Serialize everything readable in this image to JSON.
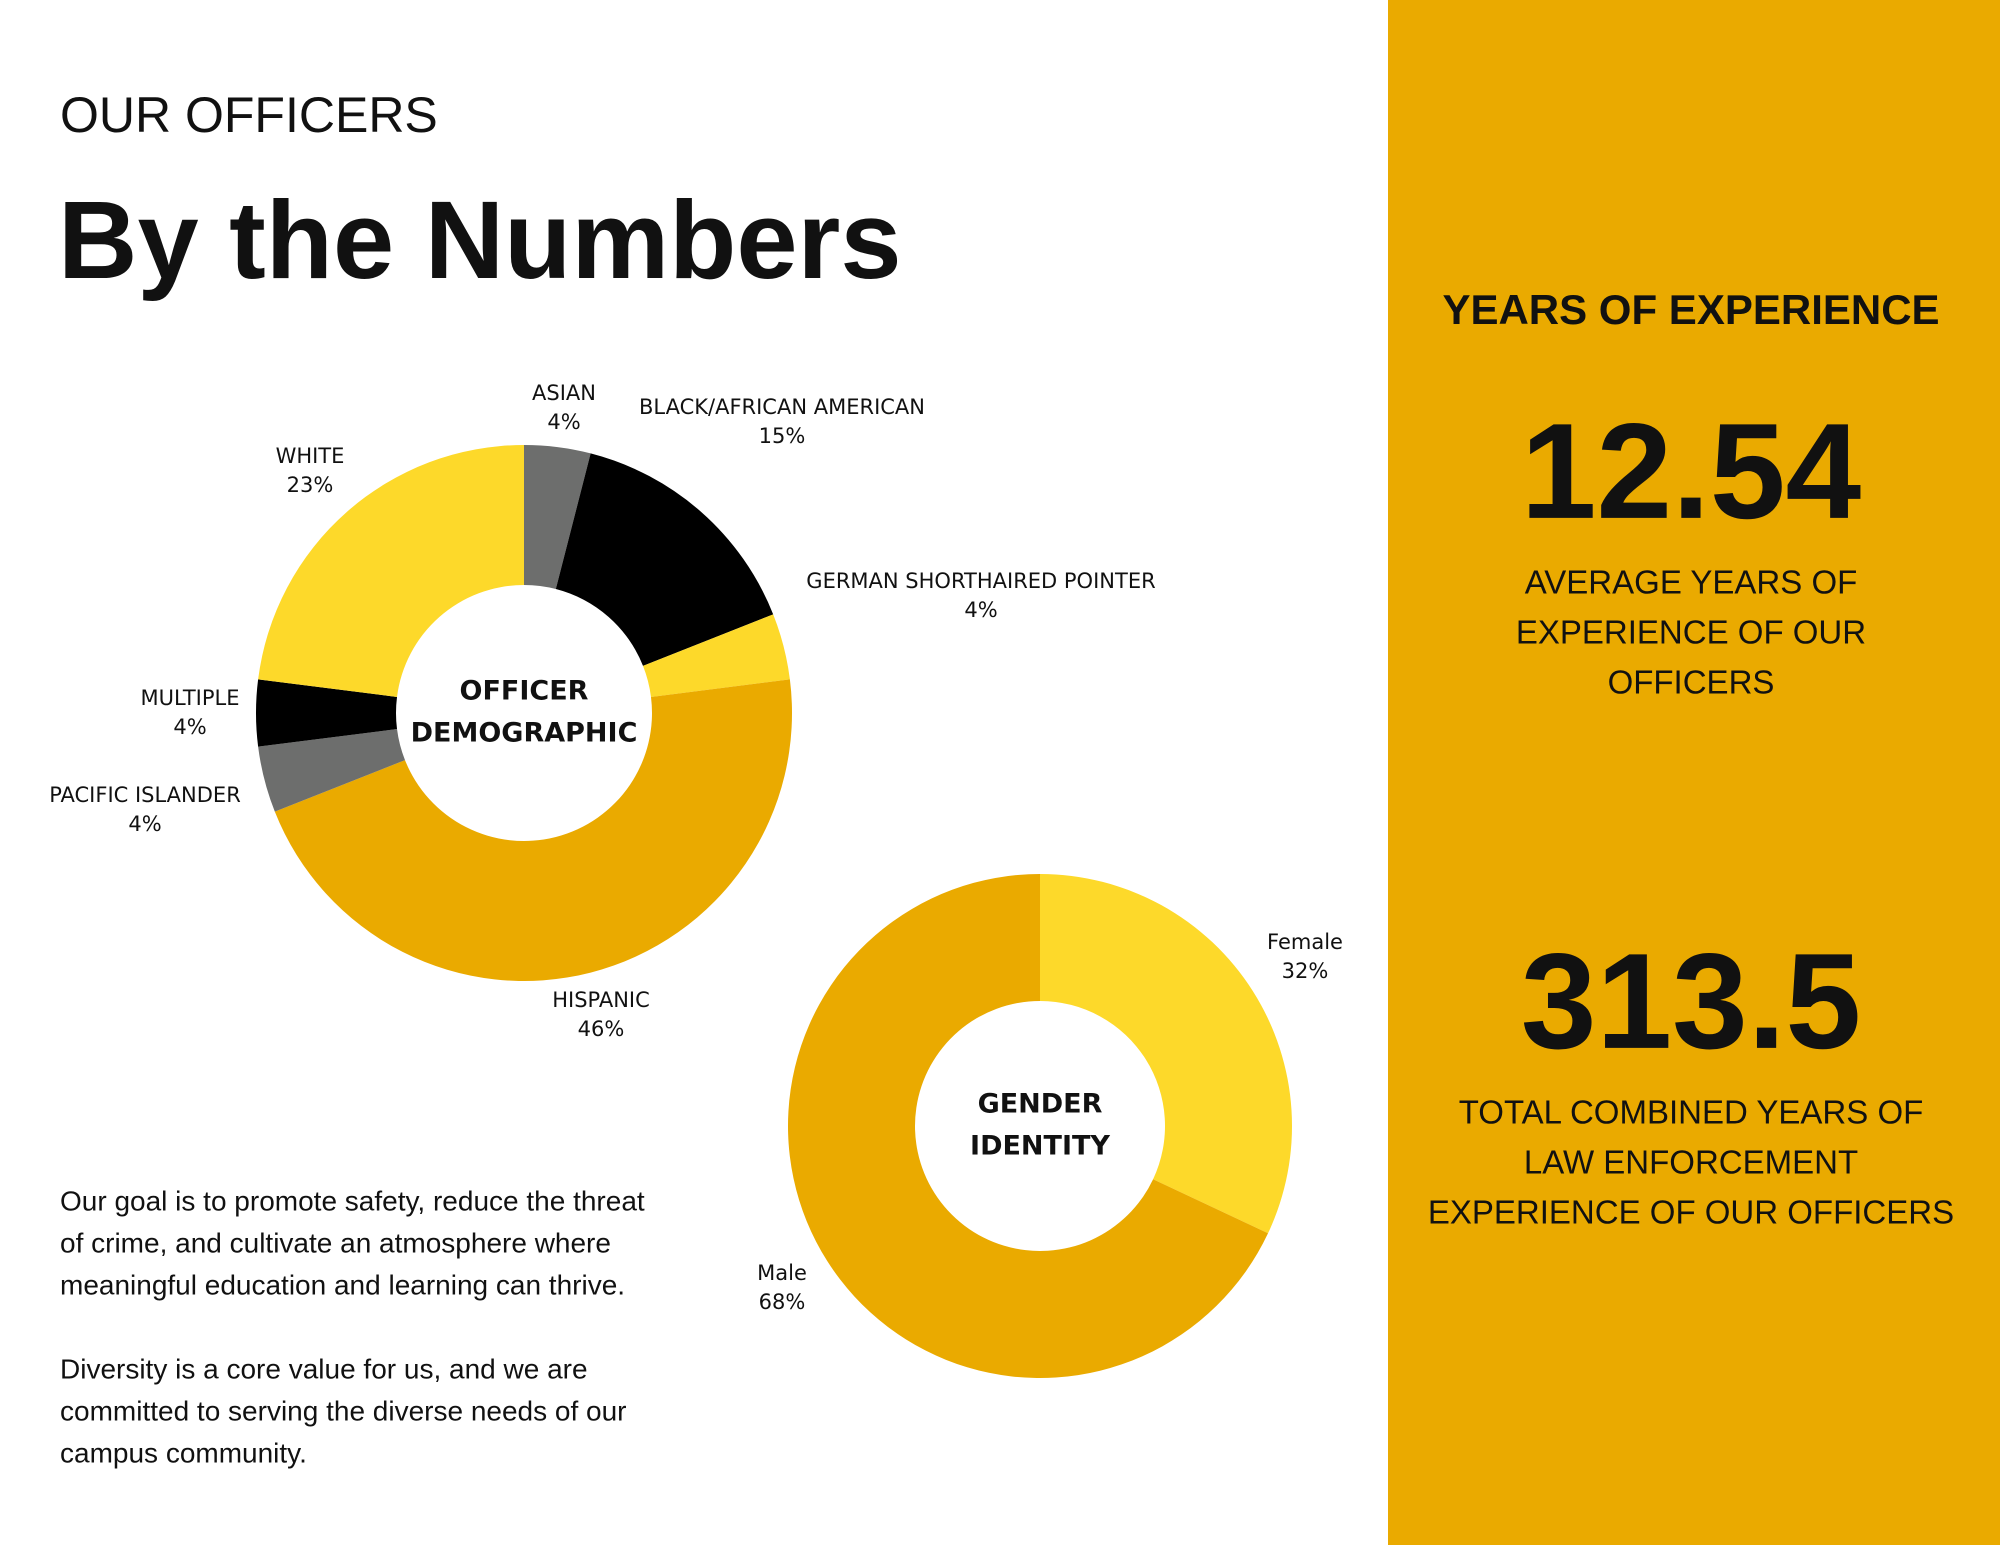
{
  "header": {
    "kicker": "OUR OFFICERS",
    "title": "By the Numbers"
  },
  "chart_data": [
    {
      "type": "donut",
      "center_label": [
        "OFFICER",
        "DEMOGRAPHIC"
      ],
      "categories": [
        "ASIAN",
        "BLACK/AFRICAN AMERICAN",
        "GERMAN SHORTHAIRED POINTER",
        "HISPANIC",
        "PACIFIC ISLANDER",
        "MULTIPLE",
        "WHITE"
      ],
      "values": [
        4,
        15,
        4,
        46,
        4,
        4,
        23
      ],
      "value_labels": [
        "4%",
        "15%",
        "4%",
        "46%",
        "4%",
        "4%",
        "23%"
      ],
      "colors": [
        "#6d6e6d",
        "#000000",
        "#fdd92a",
        "#eaaa00",
        "#6d6e6d",
        "#000000",
        "#fdd92a"
      ]
    },
    {
      "type": "donut",
      "center_label": [
        "GENDER",
        "IDENTITY"
      ],
      "categories": [
        "Female",
        "Male"
      ],
      "values": [
        32,
        68
      ],
      "value_labels": [
        "32%",
        "68%"
      ],
      "colors": [
        "#fdd92a",
        "#eaaa00"
      ]
    }
  ],
  "body": {
    "paragraphs": [
      [
        "Our goal is to promote safety, reduce the threat",
        "of crime, and cultivate an atmosphere where",
        "meaningful education and learning can thrive."
      ],
      [
        "Diversity is a core value for us, and we are",
        "committed to serving the diverse needs of our",
        "campus community."
      ]
    ]
  },
  "panel": {
    "heading": "YEARS OF EXPERIENCE",
    "stats": [
      {
        "value": "12.54",
        "lines": [
          "AVERAGE YEARS OF",
          "EXPERIENCE OF OUR",
          "OFFICERS"
        ]
      },
      {
        "value": "313.5",
        "lines": [
          "TOTAL COMBINED YEARS OF",
          "LAW ENFORCEMENT",
          "EXPERIENCE  OF OUR OFFICERS"
        ]
      }
    ]
  }
}
